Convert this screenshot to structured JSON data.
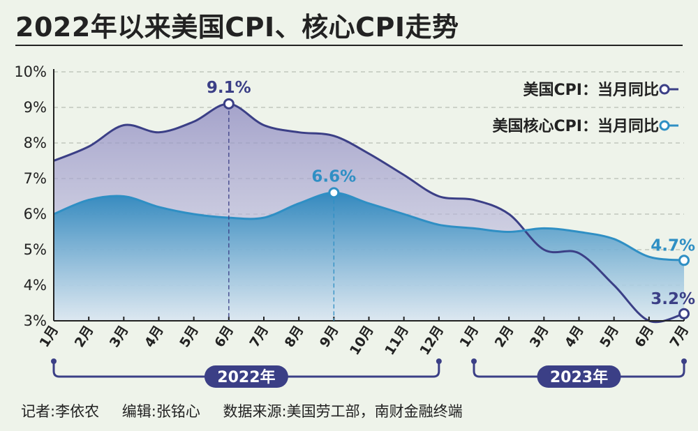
{
  "title": "2022年以来美国CPI、核心CPI走势",
  "chart_data": {
    "type": "area",
    "categories": [
      "1月",
      "2月",
      "3月",
      "4月",
      "5月",
      "6月",
      "7月",
      "8月",
      "9月",
      "10月",
      "11月",
      "12月",
      "1月",
      "2月",
      "3月",
      "4月",
      "5月",
      "6月",
      "7月"
    ],
    "year_groups": [
      {
        "label": "2022年",
        "start": 0,
        "end": 11
      },
      {
        "label": "2023年",
        "start": 12,
        "end": 18
      }
    ],
    "ylim": [
      3,
      10
    ],
    "yticks": [
      "3%",
      "4%",
      "5%",
      "6%",
      "7%",
      "8%",
      "9%",
      "10%"
    ],
    "series": [
      {
        "name": "美国CPI：当月同比",
        "color": "#3b3f86",
        "values": [
          7.5,
          7.9,
          8.5,
          8.3,
          8.6,
          9.1,
          8.5,
          8.3,
          8.2,
          7.7,
          7.1,
          6.5,
          6.4,
          6.0,
          5.0,
          4.9,
          4.0,
          3.0,
          3.2
        ]
      },
      {
        "name": "美国核心CPI：当月同比",
        "color": "#2f8fc4",
        "values": [
          6.0,
          6.4,
          6.5,
          6.2,
          6.0,
          5.9,
          5.9,
          6.3,
          6.6,
          6.3,
          6.0,
          5.7,
          5.6,
          5.5,
          5.6,
          5.5,
          5.3,
          4.8,
          4.7
        ]
      }
    ],
    "annotations": [
      {
        "series": 0,
        "index": 5,
        "text": "9.1%",
        "dashed": true
      },
      {
        "series": 1,
        "index": 8,
        "text": "6.6%",
        "dashed": true
      },
      {
        "series": 1,
        "index": 18,
        "text": "4.7%",
        "dashed": false
      },
      {
        "series": 0,
        "index": 18,
        "text": "3.2%",
        "dashed": false
      }
    ],
    "legend_position": "top-right",
    "grid": true
  },
  "footer": {
    "reporter": "记者:李依农",
    "editor": "编辑:张铭心",
    "source": "数据来源:美国劳工部，南财金融终端"
  }
}
